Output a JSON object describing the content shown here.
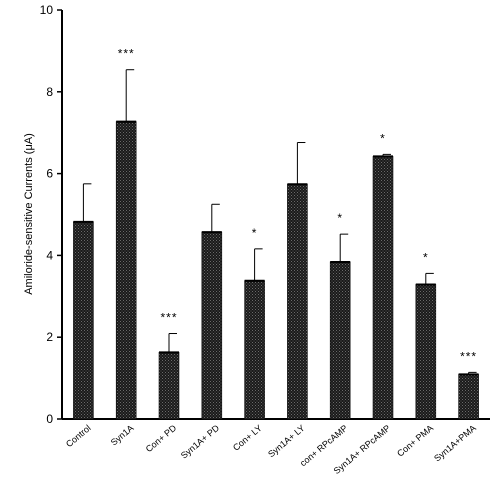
{
  "chart_data": {
    "type": "bar",
    "title": "",
    "xlabel": "",
    "ylabel": "Amiloride-sensitive Currents (μA)",
    "ylim": [
      0,
      10
    ],
    "yticks": [
      "0",
      "2",
      "4",
      "6",
      "8",
      "10"
    ],
    "grid": false,
    "categories": [
      "Control",
      "Syn1A",
      "Con+ PD",
      "Syn1A+ PD",
      "Con+ LY",
      "Syn1A+ LY",
      "con+ RPcAMP",
      "Syn1A+ RPcAMP",
      "Con+ PMA",
      "Syn1A+PMA"
    ],
    "values": [
      4.82,
      7.27,
      1.63,
      4.57,
      3.38,
      5.74,
      3.84,
      6.42,
      3.29,
      1.09
    ],
    "errors": [
      0.93,
      1.27,
      0.46,
      0.68,
      0.78,
      1.02,
      0.68,
      0.05,
      0.27,
      0.05
    ],
    "significance": [
      "",
      "***",
      "***",
      "",
      "*",
      "",
      "*",
      "*",
      "*",
      "***"
    ],
    "bar_pattern": "stippled-black"
  }
}
